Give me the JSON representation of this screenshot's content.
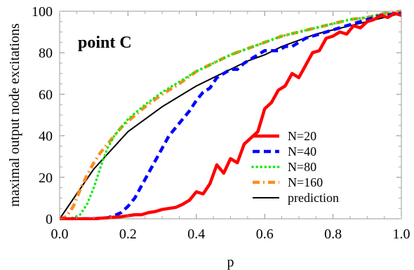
{
  "chart_data": {
    "type": "line",
    "xlabel": "p",
    "ylabel": "maximal output node excitations",
    "annotation": "point C",
    "xlim": [
      0,
      1
    ],
    "ylim": [
      0,
      100
    ],
    "x_ticks": [
      "0.0",
      "0.2",
      "0.4",
      "0.6",
      "0.8",
      "1.0"
    ],
    "y_ticks": [
      "0",
      "20",
      "40",
      "60",
      "80",
      "100"
    ],
    "legend_position": "right",
    "series": [
      {
        "name": "N=20",
        "color": "#ff0000",
        "style": "solid-thick",
        "x": [
          0.0,
          0.02,
          0.04,
          0.06,
          0.08,
          0.1,
          0.12,
          0.14,
          0.16,
          0.18,
          0.2,
          0.22,
          0.24,
          0.26,
          0.28,
          0.3,
          0.32,
          0.34,
          0.36,
          0.38,
          0.4,
          0.42,
          0.44,
          0.46,
          0.48,
          0.5,
          0.52,
          0.54,
          0.56,
          0.58,
          0.6,
          0.62,
          0.64,
          0.66,
          0.68,
          0.7,
          0.72,
          0.74,
          0.76,
          0.78,
          0.8,
          0.82,
          0.84,
          0.86,
          0.88,
          0.9,
          0.92,
          0.94,
          0.96,
          0.98,
          1.0
        ],
        "y": [
          0,
          0,
          0,
          0,
          0,
          0,
          0.3,
          0.5,
          0.8,
          1,
          1.5,
          2,
          2,
          3,
          3.5,
          4.5,
          5,
          5.5,
          7,
          9,
          13,
          12,
          17,
          26,
          22,
          29,
          27,
          36,
          39,
          42,
          53,
          56,
          62,
          64,
          70,
          68,
          74,
          80,
          81,
          87,
          88,
          90,
          89,
          93,
          92,
          95,
          96,
          98,
          97,
          99,
          98
        ]
      },
      {
        "name": "N=40",
        "color": "#0000ff",
        "style": "dashed",
        "x": [
          0.0,
          0.02,
          0.04,
          0.06,
          0.08,
          0.1,
          0.12,
          0.14,
          0.16,
          0.18,
          0.2,
          0.22,
          0.24,
          0.26,
          0.28,
          0.3,
          0.32,
          0.34,
          0.36,
          0.38,
          0.4,
          0.42,
          0.44,
          0.46,
          0.48,
          0.5,
          0.52,
          0.54,
          0.56,
          0.58,
          0.6,
          0.62,
          0.64,
          0.66,
          0.68,
          0.7,
          0.72,
          0.74,
          0.76,
          0.78,
          0.8,
          0.82,
          0.84,
          0.86,
          0.88,
          0.9,
          0.92,
          0.94,
          0.96,
          0.98,
          1.0
        ],
        "y": [
          0,
          0,
          0,
          0,
          0,
          0,
          0.3,
          0.5,
          1.5,
          3,
          6,
          10,
          16,
          22,
          28,
          34,
          40,
          44,
          48,
          52,
          57,
          61,
          63,
          68,
          70,
          72,
          72,
          75,
          77,
          79,
          81,
          81,
          81,
          83,
          83,
          85,
          87,
          88,
          89,
          90,
          91,
          92,
          93,
          94,
          95,
          96,
          97,
          98,
          98,
          99,
          99
        ]
      },
      {
        "name": "N=80",
        "color": "#00ee00",
        "style": "dotted",
        "x": [
          0.0,
          0.02,
          0.04,
          0.06,
          0.08,
          0.1,
          0.12,
          0.14,
          0.16,
          0.18,
          0.2,
          0.25,
          0.3,
          0.35,
          0.4,
          0.45,
          0.5,
          0.55,
          0.6,
          0.65,
          0.7,
          0.75,
          0.8,
          0.85,
          0.9,
          0.95,
          1.0
        ],
        "y": [
          0,
          0,
          0.5,
          2,
          7,
          15,
          25,
          34,
          40,
          44,
          48,
          55,
          61,
          66,
          71,
          75,
          79,
          82,
          85,
          88,
          90,
          92,
          94,
          96,
          97,
          99,
          99
        ]
      },
      {
        "name": "N=160",
        "color": "#ff8c1a",
        "style": "dash-dot",
        "x": [
          0.0,
          0.02,
          0.04,
          0.06,
          0.08,
          0.1,
          0.12,
          0.14,
          0.16,
          0.18,
          0.2,
          0.25,
          0.3,
          0.35,
          0.4,
          0.45,
          0.5,
          0.55,
          0.6,
          0.65,
          0.7,
          0.75,
          0.8,
          0.85,
          0.9,
          0.95,
          1.0
        ],
        "y": [
          0,
          1,
          6,
          14,
          21,
          27,
          32,
          36,
          40,
          44,
          47,
          54,
          60,
          65,
          71,
          75,
          79,
          82,
          85,
          88,
          90,
          92,
          94,
          96,
          97,
          99,
          100
        ]
      },
      {
        "name": "prediction",
        "color": "#000000",
        "style": "solid-thin",
        "x": [
          0.0,
          0.05,
          0.1,
          0.15,
          0.2,
          0.25,
          0.3,
          0.35,
          0.4,
          0.45,
          0.5,
          0.55,
          0.6,
          0.65,
          0.7,
          0.75,
          0.8,
          0.85,
          0.9,
          0.95,
          1.0
        ],
        "y": [
          0,
          12,
          24,
          33,
          42,
          48,
          54,
          59,
          64,
          68,
          72,
          76,
          79,
          83,
          86,
          89,
          91,
          93,
          95,
          97,
          99
        ]
      }
    ]
  }
}
